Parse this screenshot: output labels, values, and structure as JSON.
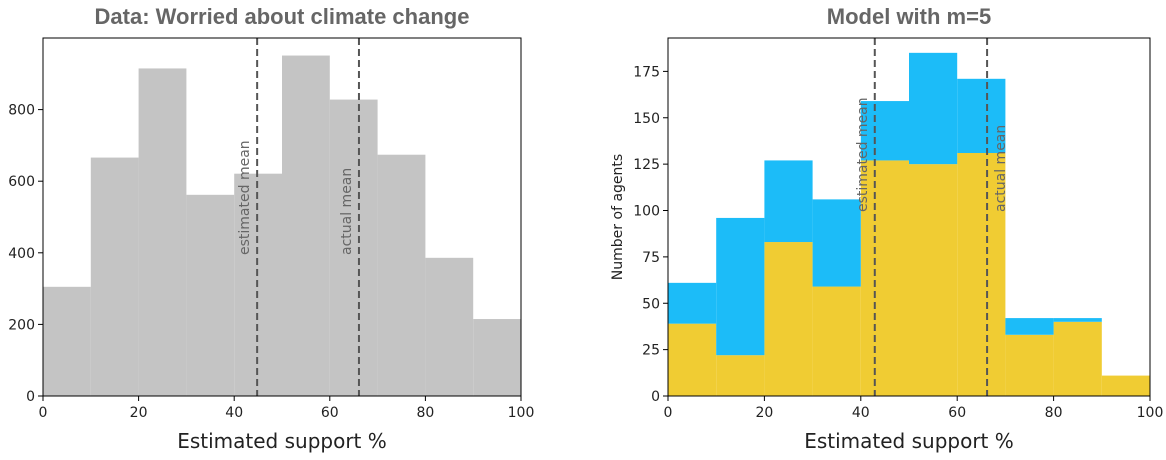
{
  "chart_data": [
    {
      "type": "histogram",
      "title": "Data: Worried about climate change",
      "xlabel": "Estimated support %",
      "bins": [
        0,
        10,
        20,
        30,
        40,
        50,
        60,
        70,
        80,
        90,
        100
      ],
      "values": [
        305,
        666,
        915,
        562,
        621,
        951,
        828,
        674,
        386,
        215
      ],
      "color": "#c4c4c4",
      "xlim": [
        0,
        100
      ],
      "xticks": [
        0,
        20,
        40,
        60,
        80,
        100
      ],
      "ylim": [
        0,
        1000
      ],
      "yticks": [
        0,
        200,
        400,
        600,
        800
      ],
      "annotations": [
        {
          "label": "estimated mean",
          "x": 44.8,
          "side": "left"
        },
        {
          "label": "actual mean",
          "x": 66.1,
          "side": "left"
        }
      ]
    },
    {
      "type": "histogram",
      "stacked": true,
      "title": "Model with m=5",
      "xlabel": "Estimated support %",
      "ylabel": "Number of agents",
      "bins": [
        0,
        10,
        20,
        30,
        40,
        50,
        60,
        70,
        80,
        90,
        100
      ],
      "series": [
        {
          "color": "#f0cc33",
          "values": [
            39,
            22,
            83,
            59,
            127,
            125,
            131,
            33,
            40,
            11
          ]
        },
        {
          "color": "#1cbcf8",
          "values": [
            22,
            74,
            44,
            47,
            32,
            60,
            40,
            9,
            2,
            0
          ]
        }
      ],
      "xlim": [
        0,
        100
      ],
      "xticks": [
        0,
        20,
        40,
        60,
        80,
        100
      ],
      "ylim": [
        0,
        193
      ],
      "yticks": [
        0,
        25,
        50,
        75,
        100,
        125,
        150,
        175
      ],
      "annotations": [
        {
          "label": "estimated mean",
          "x": 42.9,
          "side": "left"
        },
        {
          "label": "actual mean",
          "x": 66.2,
          "side": "right"
        }
      ]
    }
  ]
}
